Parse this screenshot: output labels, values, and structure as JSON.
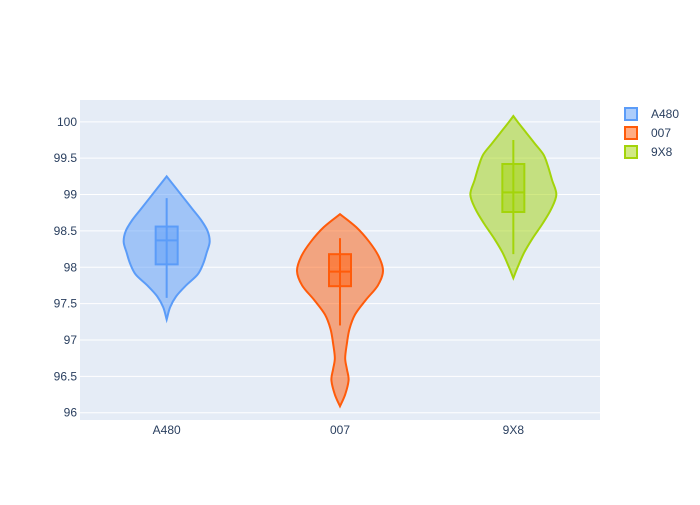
{
  "chart_data": {
    "type": "violin",
    "title": "",
    "xlabel": "",
    "ylabel": "",
    "ylim": [
      95.9,
      100.3
    ],
    "yticks": [
      96,
      96.5,
      97,
      97.5,
      98,
      98.5,
      99,
      99.5,
      100
    ],
    "ytick_labels": [
      "96",
      "96.5",
      "97",
      "97.5",
      "98",
      "98.5",
      "99",
      "99.5",
      "100"
    ],
    "categories": [
      "A480",
      "007",
      "9X8"
    ],
    "grid": true,
    "legend_position": "top-right",
    "series": [
      {
        "name": "A480",
        "color": "#5b9cf8",
        "box": {
          "whisker_low": 97.58,
          "q1": 98.04,
          "median": 98.37,
          "q3": 98.56,
          "whisker_high": 98.95
        },
        "density": [
          [
            97.28,
            0.0
          ],
          [
            97.45,
            0.08
          ],
          [
            97.6,
            0.22
          ],
          [
            97.75,
            0.45
          ],
          [
            97.9,
            0.72
          ],
          [
            98.05,
            0.85
          ],
          [
            98.2,
            0.93
          ],
          [
            98.35,
            1.0
          ],
          [
            98.5,
            0.95
          ],
          [
            98.65,
            0.8
          ],
          [
            98.8,
            0.6
          ],
          [
            98.95,
            0.4
          ],
          [
            99.1,
            0.2
          ],
          [
            99.25,
            0.0
          ]
        ]
      },
      {
        "name": "007",
        "color": "#ff5b0a",
        "box": {
          "whisker_low": 97.2,
          "q1": 97.74,
          "median": 97.94,
          "q3": 98.18,
          "whisker_high": 98.4
        },
        "density": [
          [
            96.09,
            0.0
          ],
          [
            96.25,
            0.12
          ],
          [
            96.45,
            0.2
          ],
          [
            96.6,
            0.16
          ],
          [
            96.75,
            0.12
          ],
          [
            96.95,
            0.16
          ],
          [
            97.15,
            0.22
          ],
          [
            97.35,
            0.35
          ],
          [
            97.55,
            0.6
          ],
          [
            97.75,
            0.88
          ],
          [
            97.95,
            1.0
          ],
          [
            98.15,
            0.9
          ],
          [
            98.35,
            0.68
          ],
          [
            98.55,
            0.38
          ],
          [
            98.73,
            0.0
          ]
        ]
      },
      {
        "name": "9X8",
        "color": "#a3d40a",
        "box": {
          "whisker_low": 98.18,
          "q1": 98.76,
          "median": 99.03,
          "q3": 99.42,
          "whisker_high": 99.75
        },
        "density": [
          [
            97.85,
            0.0
          ],
          [
            98.0,
            0.1
          ],
          [
            98.2,
            0.25
          ],
          [
            98.4,
            0.45
          ],
          [
            98.6,
            0.68
          ],
          [
            98.8,
            0.88
          ],
          [
            99.0,
            1.0
          ],
          [
            99.2,
            0.9
          ],
          [
            99.4,
            0.8
          ],
          [
            99.55,
            0.7
          ],
          [
            99.7,
            0.5
          ],
          [
            99.85,
            0.3
          ],
          [
            100.0,
            0.1
          ],
          [
            100.08,
            0.0
          ]
        ]
      }
    ]
  }
}
